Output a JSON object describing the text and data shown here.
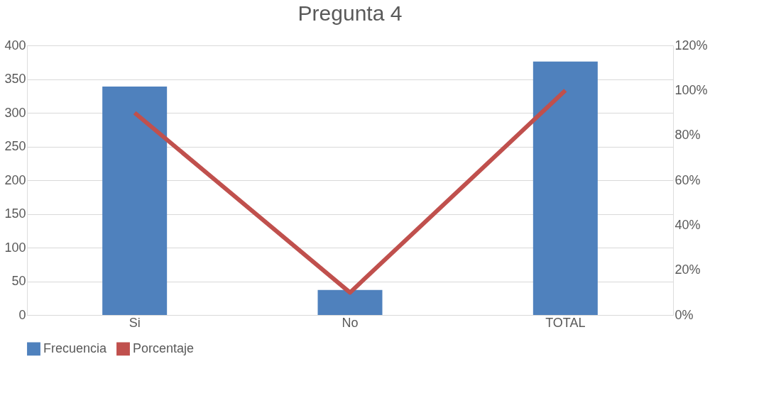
{
  "chart_data": {
    "type": "bar",
    "title": "Pregunta 4",
    "categories": [
      "Si",
      "No",
      "TOTAL"
    ],
    "series": [
      {
        "name": "Frecuencia",
        "type": "bar",
        "color": "#4f81bd",
        "values": [
          339,
          37,
          376
        ]
      },
      {
        "name": "Porcentaje",
        "type": "line",
        "axis": "y2",
        "color": "#c0504d",
        "values": [
          90,
          10,
          100
        ]
      }
    ],
    "ylim": [
      0,
      400
    ],
    "yticks": [
      0,
      50,
      100,
      150,
      200,
      250,
      300,
      350,
      400
    ],
    "y2lim": [
      0,
      120
    ],
    "y2ticks": [
      {
        "value": 0,
        "label": "0%"
      },
      {
        "value": 20,
        "label": "20%"
      },
      {
        "value": 40,
        "label": "40%"
      },
      {
        "value": 60,
        "label": "60%"
      },
      {
        "value": 80,
        "label": "80%"
      },
      {
        "value": 100,
        "label": "100%"
      },
      {
        "value": 120,
        "label": "120%"
      }
    ],
    "grid": "y",
    "legend": "bottom",
    "marker": "none",
    "line_style": "solid"
  }
}
